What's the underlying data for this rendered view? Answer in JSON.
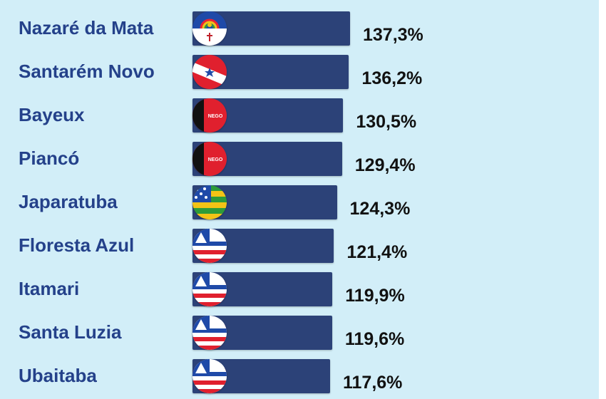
{
  "chart_data": {
    "type": "bar",
    "orientation": "horizontal",
    "categories": [
      "Nazaré da Mata",
      "Santarém Novo",
      "Bayeux",
      "Piancó",
      "Japaratuba",
      "Floresta Azul",
      "Itamari",
      "Santa Luzia",
      "Ubaitaba"
    ],
    "values": [
      137.3,
      136.2,
      130.5,
      129.4,
      124.3,
      121.4,
      119.9,
      119.6,
      117.6
    ],
    "value_labels": [
      "137,3%",
      "136,2%",
      "130,5%",
      "129,4%",
      "124,3%",
      "121,4%",
      "119,9%",
      "119,6%",
      "117,6%"
    ],
    "flags": [
      "pernambuco-flag-icon",
      "para-flag-icon",
      "paraiba-flag-icon",
      "paraiba-flag-icon",
      "sergipe-flag-icon",
      "bahia-flag-icon",
      "bahia-flag-icon",
      "bahia-flag-icon",
      "bahia-flag-icon"
    ],
    "flag_text": [
      "",
      "",
      "NEGO",
      "NEGO",
      "",
      "",
      "",
      "",
      ""
    ],
    "colors": {
      "background": "#d2eef8",
      "bar": "#2c4278",
      "label": "#24418a",
      "value": "#111111"
    }
  }
}
